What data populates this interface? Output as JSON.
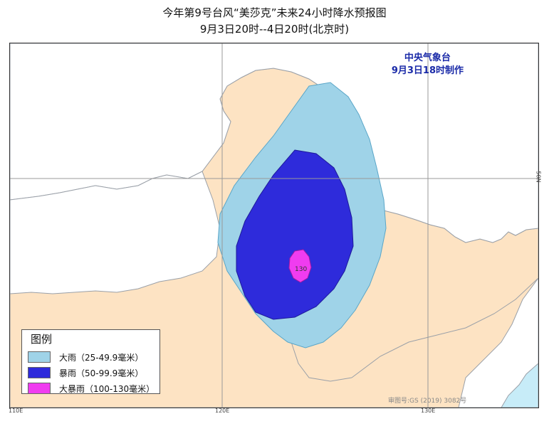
{
  "title": {
    "line1": "今年第9号台风“美莎克”未来24小时降水预报图",
    "line2": "9月3日20时--4日20时(北京时)"
  },
  "agency": {
    "name": "中央气象台",
    "made": "9月3日18时制作"
  },
  "legend": {
    "title": "图例",
    "items": [
      {
        "label": "大雨（25-49.9毫米）",
        "color": "#9fd3e8"
      },
      {
        "label": "暴雨（50-99.9毫米）",
        "color": "#2e2bdb"
      },
      {
        "label": "大暴雨（100-130毫米）",
        "color": "#f03cf0"
      }
    ]
  },
  "colors": {
    "land": "#fde3c3",
    "sea": "#c7ecf8",
    "outside": "#ffffff",
    "border": "#9aa0a8"
  },
  "map": {
    "lon_labels": [
      "110E",
      "120E",
      "130E"
    ],
    "lat_label": "50N",
    "max_label": "130",
    "map_number": "审图号:GS (2019) 3082号"
  }
}
